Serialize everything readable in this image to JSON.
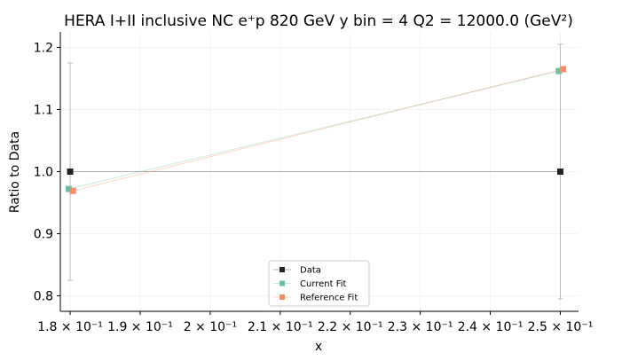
{
  "chart_data": {
    "type": "line",
    "title": "HERA I+II inclusive NC e⁺p 820 GeV y bin = 4 Q2 = 12000.0 (GeV²)",
    "xlabel": "x",
    "ylabel": "Ratio to Data",
    "xlim": [
      0.1786,
      0.2526
    ],
    "ylim": [
      0.775,
      1.225
    ],
    "xticks": [
      {
        "value": 0.18,
        "label": "1.8 × 10⁻¹"
      },
      {
        "value": 0.19,
        "label": "1.9 × 10⁻¹"
      },
      {
        "value": 0.2,
        "label": "2 × 10⁻¹"
      },
      {
        "value": 0.21,
        "label": "2.1 × 10⁻¹"
      },
      {
        "value": 0.22,
        "label": "2.2 × 10⁻¹"
      },
      {
        "value": 0.23,
        "label": "2.3 × 10⁻¹"
      },
      {
        "value": 0.24,
        "label": "2.4 × 10⁻¹"
      },
      {
        "value": 0.25,
        "label": "2.5 × 10⁻¹"
      }
    ],
    "yticks": [
      {
        "value": 0.8,
        "label": "0.8"
      },
      {
        "value": 0.9,
        "label": "0.9"
      },
      {
        "value": 1.0,
        "label": "1.0"
      },
      {
        "value": 1.1,
        "label": "1.1"
      },
      {
        "value": 1.2,
        "label": "1.2"
      }
    ],
    "legend_position": "lower center",
    "series": [
      {
        "name": "Data",
        "color": "#222222",
        "marker": "square",
        "x_offset": 0,
        "points": [
          {
            "x": 0.18,
            "y": 1.0,
            "err": 0.175
          },
          {
            "x": 0.25,
            "y": 1.0,
            "err": 0.205
          }
        ]
      },
      {
        "name": "Current Fit",
        "color": "#66c2a5",
        "marker": "square",
        "x_offset": -0.0002,
        "points": [
          {
            "x": 0.18,
            "y": 0.972
          },
          {
            "x": 0.25,
            "y": 1.162
          }
        ]
      },
      {
        "name": "Reference Fit",
        "color": "#fc8d62",
        "marker": "square",
        "x_offset": 0.0004,
        "points": [
          {
            "x": 0.18,
            "y": 0.969
          },
          {
            "x": 0.25,
            "y": 1.165
          }
        ]
      }
    ]
  }
}
